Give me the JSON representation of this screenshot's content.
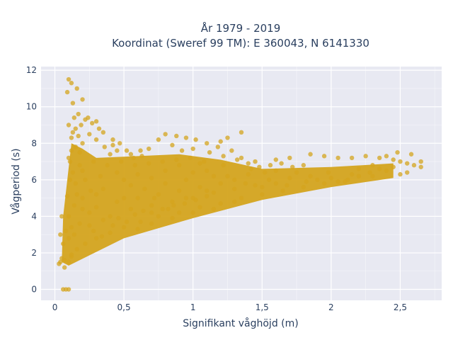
{
  "chart_data": {
    "type": "scatter",
    "title_lines": [
      "År 1979 - 2019",
      "Koordinat (Sweref 99 TM): E 360043, N 6141330"
    ],
    "xlabel": "Signifikant våghöjd (m)",
    "ylabel": "Vågperiod (s)",
    "xlim": [
      -0.1,
      2.8
    ],
    "ylim": [
      -0.6,
      12.2
    ],
    "x_ticks": [
      {
        "value": 0,
        "label": "0"
      },
      {
        "value": 0.5,
        "label": "0,5"
      },
      {
        "value": 1,
        "label": "1"
      },
      {
        "value": 1.5,
        "label": "1,5"
      },
      {
        "value": 2,
        "label": "2"
      },
      {
        "value": 2.5,
        "label": "2,5"
      }
    ],
    "y_ticks": [
      {
        "value": 0,
        "label": "0"
      },
      {
        "value": 2,
        "label": "2"
      },
      {
        "value": 4,
        "label": "4"
      },
      {
        "value": 6,
        "label": "6"
      },
      {
        "value": 8,
        "label": "8"
      },
      {
        "value": 10,
        "label": "10"
      },
      {
        "value": 12,
        "label": "12"
      }
    ],
    "grid": true,
    "colors": {
      "marker": "#d4a41e",
      "plot_bg": "#e8e9f2",
      "grid": "#ffffff",
      "text": "#2a3f5f"
    },
    "points": [
      [
        0.03,
        1.4
      ],
      [
        0.05,
        1.7
      ],
      [
        0.07,
        1.2
      ],
      [
        0.1,
        1.5
      ],
      [
        0.12,
        1.8
      ],
      [
        0.06,
        2.5
      ],
      [
        0.08,
        3.2
      ],
      [
        0.1,
        4.0
      ],
      [
        0.09,
        5.1
      ],
      [
        0.11,
        6.0
      ],
      [
        0.1,
        7.2
      ],
      [
        0.12,
        8.3
      ],
      [
        0.1,
        9.0
      ],
      [
        0.14,
        9.4
      ],
      [
        0.13,
        10.2
      ],
      [
        0.09,
        10.8
      ],
      [
        0.1,
        11.5
      ],
      [
        0.12,
        11.3
      ],
      [
        0.16,
        11.0
      ],
      [
        0.2,
        10.4
      ],
      [
        0.17,
        9.6
      ],
      [
        0.22,
        9.3
      ],
      [
        0.27,
        9.1
      ],
      [
        0.32,
        8.8
      ],
      [
        0.35,
        8.6
      ],
      [
        0.42,
        8.2
      ],
      [
        0.45,
        7.6
      ],
      [
        0.55,
        7.4
      ],
      [
        0.62,
        7.6
      ],
      [
        0.68,
        7.7
      ],
      [
        0.75,
        8.2
      ],
      [
        0.8,
        8.5
      ],
      [
        0.88,
        8.4
      ],
      [
        0.95,
        8.3
      ],
      [
        1.02,
        8.2
      ],
      [
        1.1,
        8.0
      ],
      [
        1.18,
        7.8
      ],
      [
        1.2,
        8.1
      ],
      [
        1.25,
        8.3
      ],
      [
        1.35,
        8.6
      ],
      [
        1.28,
        7.6
      ],
      [
        1.35,
        7.2
      ],
      [
        1.45,
        7.0
      ],
      [
        1.6,
        7.1
      ],
      [
        1.7,
        7.2
      ],
      [
        1.85,
        7.4
      ],
      [
        1.95,
        7.3
      ],
      [
        2.05,
        7.2
      ],
      [
        2.15,
        7.2
      ],
      [
        2.25,
        7.3
      ],
      [
        2.35,
        7.2
      ],
      [
        2.45,
        7.1
      ],
      [
        2.5,
        7.0
      ],
      [
        2.55,
        6.9
      ],
      [
        2.6,
        6.8
      ],
      [
        2.65,
        6.7
      ],
      [
        2.65,
        7.0
      ],
      [
        2.58,
        7.4
      ],
      [
        2.48,
        7.5
      ],
      [
        2.4,
        7.3
      ],
      [
        2.3,
        6.8
      ],
      [
        2.2,
        6.6
      ],
      [
        2.4,
        6.5
      ],
      [
        2.5,
        6.3
      ],
      [
        2.55,
        6.4
      ],
      [
        2.3,
        6.2
      ],
      [
        2.1,
        5.9
      ],
      [
        1.95,
        5.8
      ],
      [
        1.8,
        5.6
      ],
      [
        1.65,
        5.4
      ],
      [
        1.5,
        5.2
      ],
      [
        1.35,
        5.0
      ],
      [
        1.2,
        4.7
      ],
      [
        1.05,
        4.5
      ],
      [
        0.9,
        4.2
      ],
      [
        0.75,
        4.0
      ],
      [
        0.62,
        3.7
      ],
      [
        0.5,
        3.4
      ],
      [
        0.4,
        3.1
      ],
      [
        0.3,
        2.8
      ],
      [
        0.22,
        2.5
      ],
      [
        0.16,
        2.2
      ],
      [
        0.12,
        1.9
      ],
      [
        0.07,
        1.6
      ],
      [
        0.04,
        1.5
      ],
      [
        0.06,
        0.0
      ],
      [
        0.08,
        0.0
      ],
      [
        0.1,
        0.0
      ],
      [
        0.05,
        4.0
      ],
      [
        0.04,
        3.0
      ],
      [
        0.2,
        6.5
      ],
      [
        0.35,
        5.5
      ],
      [
        0.5,
        6.0
      ],
      [
        0.65,
        5.5
      ],
      [
        0.8,
        6.5
      ],
      [
        0.95,
        6.0
      ],
      [
        1.1,
        6.5
      ],
      [
        1.25,
        6.2
      ],
      [
        1.4,
        6.3
      ],
      [
        1.55,
        6.0
      ],
      [
        1.7,
        6.1
      ],
      [
        1.85,
        6.2
      ],
      [
        2.0,
        6.1
      ],
      [
        2.15,
        6.3
      ],
      [
        0.3,
        4.5
      ],
      [
        0.45,
        4.8
      ],
      [
        0.6,
        5.0
      ],
      [
        0.75,
        5.2
      ],
      [
        0.9,
        5.4
      ],
      [
        1.05,
        5.6
      ],
      [
        0.25,
        3.5
      ],
      [
        0.4,
        4.0
      ],
      [
        0.55,
        4.4
      ],
      [
        0.7,
        4.6
      ],
      [
        0.85,
        4.8
      ],
      [
        1.0,
        5.0
      ],
      [
        1.15,
        5.3
      ],
      [
        1.3,
        5.5
      ],
      [
        1.45,
        5.7
      ],
      [
        1.6,
        5.8
      ],
      [
        0.18,
        7.5
      ],
      [
        0.28,
        7.0
      ],
      [
        0.38,
        6.8
      ],
      [
        0.48,
        7.0
      ],
      [
        0.58,
        6.8
      ],
      [
        0.68,
        6.9
      ],
      [
        0.78,
        7.0
      ],
      [
        0.88,
        7.1
      ],
      [
        0.98,
        7.2
      ],
      [
        1.08,
        7.0
      ],
      [
        0.15,
        5.8
      ],
      [
        0.2,
        5.0
      ],
      [
        0.25,
        4.2
      ],
      [
        0.35,
        3.8
      ],
      [
        0.6,
        3.3
      ],
      [
        0.7,
        3.6
      ],
      [
        0.85,
        3.9
      ],
      [
        1.0,
        4.2
      ],
      [
        1.15,
        4.4
      ],
      [
        1.3,
        4.8
      ],
      [
        0.2,
        8.0
      ],
      [
        0.25,
        8.5
      ],
      [
        0.3,
        8.2
      ],
      [
        0.15,
        8.8
      ],
      [
        0.12,
        7.6
      ],
      [
        0.18,
        6.8
      ],
      [
        0.22,
        6.0
      ],
      [
        0.26,
        5.4
      ],
      [
        0.3,
        5.2
      ],
      [
        0.33,
        6.2
      ],
      [
        0.4,
        7.4
      ],
      [
        0.45,
        6.4
      ],
      [
        0.5,
        5.0
      ],
      [
        0.55,
        5.7
      ],
      [
        0.6,
        6.3
      ],
      [
        0.7,
        6.1
      ],
      [
        0.72,
        5.0
      ],
      [
        0.8,
        5.8
      ],
      [
        0.82,
        4.4
      ],
      [
        0.9,
        6.8
      ],
      [
        0.95,
        5.0
      ],
      [
        1.0,
        6.4
      ],
      [
        1.05,
        6.9
      ],
      [
        1.1,
        5.4
      ],
      [
        1.15,
        6.2
      ],
      [
        1.2,
        5.8
      ],
      [
        1.22,
        6.8
      ],
      [
        1.3,
        6.0
      ],
      [
        1.38,
        5.8
      ],
      [
        1.42,
        6.6
      ],
      [
        1.5,
        5.6
      ],
      [
        1.52,
        6.4
      ],
      [
        1.6,
        6.5
      ],
      [
        1.68,
        5.7
      ],
      [
        1.75,
        6.4
      ],
      [
        1.82,
        5.9
      ],
      [
        1.9,
        6.0
      ],
      [
        1.98,
        6.4
      ],
      [
        2.05,
        5.9
      ],
      [
        2.12,
        6.0
      ],
      [
        2.2,
        6.2
      ],
      [
        2.28,
        6.4
      ],
      [
        2.35,
        6.6
      ],
      [
        2.45,
        6.7
      ],
      [
        0.14,
        3.0
      ],
      [
        0.18,
        3.6
      ],
      [
        0.2,
        4.4
      ],
      [
        0.28,
        3.2
      ],
      [
        0.34,
        2.9
      ],
      [
        0.42,
        3.5
      ],
      [
        0.46,
        3.9
      ],
      [
        0.52,
        3.7
      ],
      [
        0.58,
        4.1
      ],
      [
        0.64,
        4.3
      ],
      [
        0.7,
        4.2
      ],
      [
        0.78,
        4.4
      ],
      [
        0.86,
        4.6
      ],
      [
        0.94,
        4.7
      ],
      [
        1.02,
        4.9
      ],
      [
        1.1,
        5.1
      ],
      [
        0.1,
        2.8
      ],
      [
        0.12,
        3.4
      ],
      [
        0.14,
        4.6
      ],
      [
        0.16,
        5.2
      ],
      [
        0.13,
        6.4
      ],
      [
        0.11,
        7.0
      ],
      [
        0.15,
        7.8
      ],
      [
        0.17,
        8.4
      ],
      [
        0.13,
        8.6
      ],
      [
        0.19,
        9.0
      ],
      [
        0.24,
        9.4
      ],
      [
        0.3,
        9.2
      ],
      [
        0.36,
        7.8
      ],
      [
        0.42,
        7.9
      ],
      [
        0.47,
        8.0
      ],
      [
        0.52,
        7.6
      ],
      [
        0.57,
        7.2
      ],
      [
        0.63,
        7.3
      ],
      [
        0.85,
        7.9
      ],
      [
        0.92,
        7.6
      ],
      [
        1.0,
        7.7
      ],
      [
        1.12,
        7.5
      ],
      [
        1.22,
        7.3
      ],
      [
        1.32,
        7.1
      ],
      [
        1.4,
        6.9
      ],
      [
        1.48,
        6.7
      ],
      [
        1.56,
        6.8
      ],
      [
        1.64,
        6.9
      ],
      [
        1.72,
        6.7
      ],
      [
        1.8,
        6.8
      ]
    ]
  }
}
